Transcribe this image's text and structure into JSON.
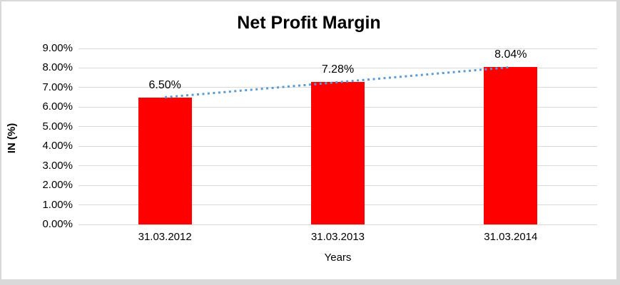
{
  "chart_data": {
    "type": "bar",
    "title": "Net Profit Margin",
    "categories": [
      "31.03.2012",
      "31.03.2013",
      "31.03.2014"
    ],
    "values": [
      6.5,
      7.28,
      8.04
    ],
    "data_labels": [
      "6.50%",
      "7.28%",
      "8.04%"
    ],
    "xlabel": "Years",
    "ylabel": "IN (%)",
    "ylim": [
      0,
      9
    ],
    "ytick_step": 1,
    "ytick_labels": [
      "0.00%",
      "1.00%",
      "2.00%",
      "3.00%",
      "4.00%",
      "5.00%",
      "6.00%",
      "7.00%",
      "8.00%",
      "9.00%"
    ],
    "bar_color": "#ff0000",
    "gridline_color": "#d9d9d9",
    "trendline": {
      "kind": "linear",
      "color": "#5b9bd5",
      "style": "dotted"
    },
    "legend": "none",
    "grid": "horizontal"
  }
}
